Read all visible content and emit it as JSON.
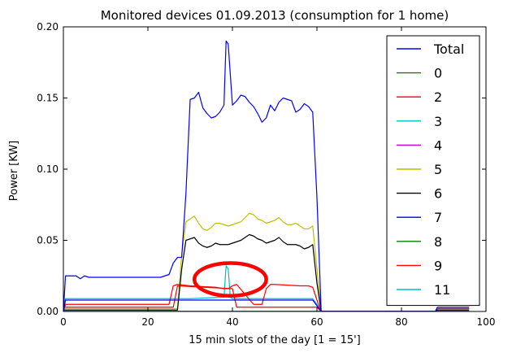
{
  "chart_data": {
    "type": "line",
    "title": "Monitored devices 01.09.2013 (consumption for 1 home)",
    "xlabel": "15 min slots of the day [1 = 15']",
    "ylabel": "Power [KW]",
    "xlim": [
      0,
      100
    ],
    "ylim": [
      0,
      0.2
    ],
    "xticks": [
      0,
      20,
      40,
      60,
      80,
      100
    ],
    "yticks": [
      0.0,
      0.05,
      0.1,
      0.15,
      0.2
    ],
    "xtick_labels": [
      "0",
      "20",
      "40",
      "60",
      "80",
      "100"
    ],
    "ytick_labels": [
      "0.00",
      "0.05",
      "0.10",
      "0.15",
      "0.20"
    ],
    "grid": false,
    "legend_position": "top-right",
    "series": [
      {
        "name": "Total",
        "color": "#0000ff",
        "x": [
          0,
          0.5,
          1,
          3,
          4,
          5,
          6,
          10,
          15,
          20,
          23,
          25,
          26,
          27,
          28,
          29,
          30,
          31,
          32,
          33,
          34,
          35,
          36,
          37,
          38,
          38.5,
          39,
          40,
          41,
          42,
          43,
          44,
          45,
          46,
          47,
          48,
          49,
          50,
          51,
          52,
          53,
          54,
          55,
          56,
          57,
          58,
          59,
          60,
          61,
          62,
          65,
          70,
          75,
          80,
          85,
          88,
          88.5,
          90,
          92,
          95,
          96
        ],
        "y": [
          0,
          0.025,
          0.025,
          0.025,
          0.023,
          0.025,
          0.024,
          0.024,
          0.024,
          0.024,
          0.024,
          0.026,
          0.034,
          0.038,
          0.038,
          0.083,
          0.149,
          0.15,
          0.154,
          0.143,
          0.139,
          0.136,
          0.137,
          0.14,
          0.145,
          0.19,
          0.188,
          0.145,
          0.148,
          0.152,
          0.151,
          0.147,
          0.144,
          0.139,
          0.133,
          0.136,
          0.145,
          0.141,
          0.147,
          0.15,
          0.149,
          0.148,
          0.14,
          0.142,
          0.146,
          0.144,
          0.14,
          0.08,
          0,
          0,
          0,
          0,
          0,
          0,
          0,
          0,
          0.003,
          0.003,
          0.003,
          0.003,
          0.003
        ]
      },
      {
        "name": "0",
        "color": "#008000",
        "x": [
          0,
          60,
          61,
          96
        ],
        "y": [
          0,
          0,
          0,
          0
        ]
      },
      {
        "name": "2",
        "color": "#ff0000",
        "x": [
          0,
          1,
          25,
          26,
          27,
          40,
          41,
          46,
          47,
          60,
          61,
          88,
          88.5,
          96
        ],
        "y": [
          0.003,
          0.003,
          0.003,
          0.003,
          0.018,
          0.016,
          0.003,
          0.003,
          0.003,
          0.003,
          0,
          0,
          0.002,
          0.002
        ]
      },
      {
        "name": "3",
        "color": "#00bfbf",
        "x": [
          0,
          0.5,
          10,
          20,
          30,
          38,
          38.5,
          39,
          39.5,
          40,
          50,
          59,
          60,
          61,
          96
        ],
        "y": [
          0,
          0.009,
          0.009,
          0.009,
          0.009,
          0.01,
          0.032,
          0.03,
          0.01,
          0.009,
          0.009,
          0.009,
          0.005,
          0,
          0
        ]
      },
      {
        "name": "4",
        "color": "#bf00bf",
        "x": [
          0,
          60,
          61,
          96
        ],
        "y": [
          0,
          0,
          0,
          0
        ]
      },
      {
        "name": "5",
        "color": "#bfbf00",
        "x": [
          0,
          27,
          28,
          29,
          30,
          31,
          32,
          33,
          34,
          35,
          36,
          37,
          38,
          39,
          40,
          41,
          42,
          43,
          44,
          45,
          46,
          47,
          48,
          49,
          50,
          51,
          52,
          53,
          54,
          55,
          56,
          57,
          58,
          59,
          60,
          61,
          88,
          88.5,
          96
        ],
        "y": [
          0.002,
          0.002,
          0.04,
          0.063,
          0.065,
          0.067,
          0.062,
          0.058,
          0.057,
          0.059,
          0.062,
          0.062,
          0.061,
          0.06,
          0.061,
          0.062,
          0.063,
          0.066,
          0.069,
          0.068,
          0.065,
          0.064,
          0.062,
          0.063,
          0.064,
          0.066,
          0.063,
          0.061,
          0.061,
          0.062,
          0.06,
          0.058,
          0.058,
          0.06,
          0.03,
          0,
          0,
          0.002,
          0.002
        ]
      },
      {
        "name": "6",
        "color": "#000000",
        "x": [
          0,
          27,
          28,
          29,
          30,
          31,
          32,
          33,
          34,
          35,
          36,
          37,
          38,
          39,
          40,
          41,
          42,
          43,
          44,
          45,
          46,
          47,
          48,
          49,
          50,
          51,
          52,
          53,
          54,
          55,
          56,
          57,
          58,
          59,
          60,
          61,
          88,
          88.5,
          96
        ],
        "y": [
          0.001,
          0.001,
          0.03,
          0.05,
          0.051,
          0.052,
          0.048,
          0.046,
          0.045,
          0.046,
          0.048,
          0.047,
          0.047,
          0.047,
          0.048,
          0.049,
          0.05,
          0.052,
          0.054,
          0.053,
          0.051,
          0.05,
          0.048,
          0.049,
          0.05,
          0.052,
          0.049,
          0.047,
          0.047,
          0.047,
          0.046,
          0.044,
          0.045,
          0.047,
          0.02,
          0,
          0,
          0.001,
          0.001
        ]
      },
      {
        "name": "7",
        "color": "#0000ff",
        "x": [
          0,
          0.5,
          10,
          20,
          30,
          40,
          50,
          59,
          60,
          61,
          96
        ],
        "y": [
          0,
          0.008,
          0.008,
          0.008,
          0.008,
          0.008,
          0.008,
          0.008,
          0.004,
          0,
          0
        ]
      },
      {
        "name": "8",
        "color": "#008000",
        "x": [
          0,
          60,
          61,
          96
        ],
        "y": [
          0,
          0,
          0,
          0
        ]
      },
      {
        "name": "9",
        "color": "#ff0000",
        "x": [
          0,
          0.5,
          20,
          24,
          25,
          26,
          27,
          30,
          36,
          38,
          39,
          40,
          41,
          45,
          46,
          47,
          48,
          49,
          50,
          56,
          58,
          59,
          60,
          61,
          96
        ],
        "y": [
          0,
          0.005,
          0.005,
          0.005,
          0.005,
          0.018,
          0.019,
          0.018,
          0.017,
          0.016,
          0.016,
          0.018,
          0.019,
          0.005,
          0.005,
          0.005,
          0.016,
          0.019,
          0.019,
          0.018,
          0.018,
          0.017,
          0.008,
          0,
          0
        ]
      },
      {
        "name": "11",
        "color": "#00bfbf",
        "x": [
          0,
          60,
          61,
          96
        ],
        "y": [
          0,
          0,
          0,
          0
        ]
      }
    ],
    "annotations": [
      {
        "type": "ellipse",
        "color": "#ff0000",
        "center": [
          39.5,
          0.0225
        ],
        "radius_x": 8.5,
        "radius_y": 0.0115
      }
    ]
  }
}
